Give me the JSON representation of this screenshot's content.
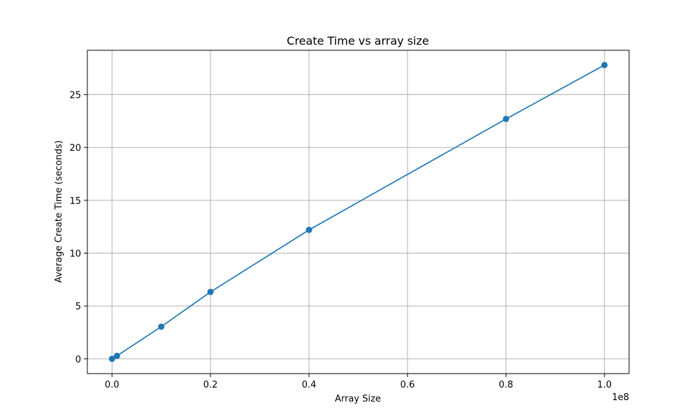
{
  "chart_data": {
    "type": "line",
    "title": "Create Time vs array size",
    "xlabel": "Array Size",
    "ylabel": "Average Create Time (seconds)",
    "x_offset_label": "1e8",
    "x_ticks": [
      0.0,
      0.2,
      0.4,
      0.6,
      0.8,
      1.0
    ],
    "x_tick_labels": [
      "0.0",
      "0.2",
      "0.4",
      "0.6",
      "0.8",
      "1.0"
    ],
    "y_ticks": [
      0,
      5,
      10,
      15,
      20,
      25
    ],
    "y_tick_labels": [
      "0",
      "5",
      "10",
      "15",
      "20",
      "25"
    ],
    "xlim": [
      -0.05,
      1.05
    ],
    "ylim": [
      -1.4,
      29.2
    ],
    "grid": true,
    "series": [
      {
        "x": [
          0.0,
          0.01,
          0.1,
          0.2,
          0.4,
          0.8,
          1.0
        ],
        "y": [
          0.0,
          0.28,
          3.04,
          6.33,
          12.2,
          22.7,
          27.8
        ],
        "color": "#1f77b4",
        "marker": "circle"
      }
    ]
  }
}
